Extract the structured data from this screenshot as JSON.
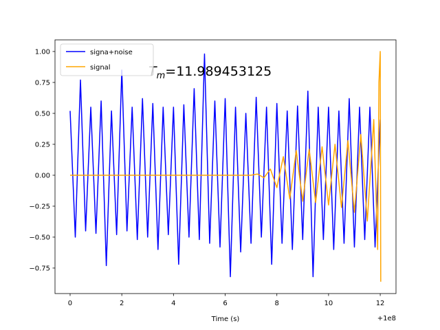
{
  "chart_data": {
    "type": "line",
    "xlabel": "Time (s)",
    "x_offset_label": "+1e8",
    "annotation": {
      "symbol": "T",
      "subscript": "m",
      "text": "=11.989453125"
    },
    "xlim": [
      -0.585,
      12.61
    ],
    "ylim": [
      -0.956,
      1.094
    ],
    "xticks": [
      0,
      2,
      4,
      6,
      8,
      10,
      12
    ],
    "yticks": [
      {
        "value": -0.75,
        "label": "−0.75"
      },
      {
        "value": -0.5,
        "label": "−0.50"
      },
      {
        "value": -0.25,
        "label": "−0.25"
      },
      {
        "value": 0,
        "label": "0.00"
      },
      {
        "value": 0.25,
        "label": "0.25"
      },
      {
        "value": 0.5,
        "label": "0.50"
      },
      {
        "value": 0.75,
        "label": "0.75"
      },
      {
        "value": 1,
        "label": "1.00"
      }
    ],
    "legend": "upper left",
    "grid": false,
    "series": [
      {
        "name": "signa+noise",
        "color": "#0000ff",
        "x": [
          0,
          0.2,
          0.4,
          0.6,
          0.8,
          1.0,
          1.2,
          1.4,
          1.6,
          1.8,
          2.0,
          2.2,
          2.4,
          2.6,
          2.8,
          3.0,
          3.2,
          3.4,
          3.6,
          3.8,
          4.0,
          4.2,
          4.4,
          4.6,
          4.8,
          5.0,
          5.2,
          5.4,
          5.6,
          5.8,
          6.0,
          6.2,
          6.4,
          6.6,
          6.8,
          7.0,
          7.2,
          7.4,
          7.6,
          7.8,
          8.0,
          8.2,
          8.4,
          8.6,
          8.8,
          9.0,
          9.2,
          9.4,
          9.6,
          9.8,
          10.0,
          10.2,
          10.4,
          10.6,
          10.8,
          11.0,
          11.2,
          11.4,
          11.6,
          11.8,
          12.0
        ],
        "values": [
          0.52,
          -0.5,
          0.77,
          -0.45,
          0.55,
          -0.47,
          0.6,
          -0.73,
          0.52,
          -0.48,
          0.85,
          -0.45,
          0.55,
          -0.52,
          0.62,
          -0.5,
          0.58,
          -0.6,
          0.55,
          -0.48,
          0.55,
          -0.72,
          0.57,
          -0.5,
          0.7,
          -0.52,
          0.98,
          -0.55,
          0.6,
          -0.58,
          0.62,
          -0.82,
          0.55,
          -0.62,
          0.5,
          -0.55,
          0.63,
          -0.5,
          0.55,
          -0.72,
          0.58,
          -0.55,
          0.52,
          -0.6,
          0.56,
          -0.52,
          0.68,
          -0.82,
          0.55,
          -0.52,
          0.55,
          -0.6,
          0.52,
          -0.55,
          0.62,
          -0.58,
          0.55,
          -0.52,
          0.55,
          -0.58,
          0.45
        ]
      },
      {
        "name": "signal",
        "color": "#ffa500",
        "x": [
          0,
          7.0,
          7.25,
          7.5,
          7.75,
          8.0,
          8.25,
          8.5,
          8.75,
          9.0,
          9.25,
          9.5,
          9.75,
          10.0,
          10.25,
          10.5,
          10.75,
          11.0,
          11.25,
          11.5,
          11.75,
          11.9,
          11.95,
          12.0,
          12.02
        ],
        "values": [
          0,
          0,
          0.01,
          -0.02,
          0.05,
          -0.1,
          0.15,
          -0.19,
          0.2,
          -0.21,
          0.21,
          -0.22,
          0.23,
          -0.24,
          0.25,
          -0.26,
          0.28,
          -0.3,
          0.33,
          -0.37,
          0.45,
          -0.6,
          0.75,
          1.0,
          -0.86
        ]
      }
    ]
  }
}
